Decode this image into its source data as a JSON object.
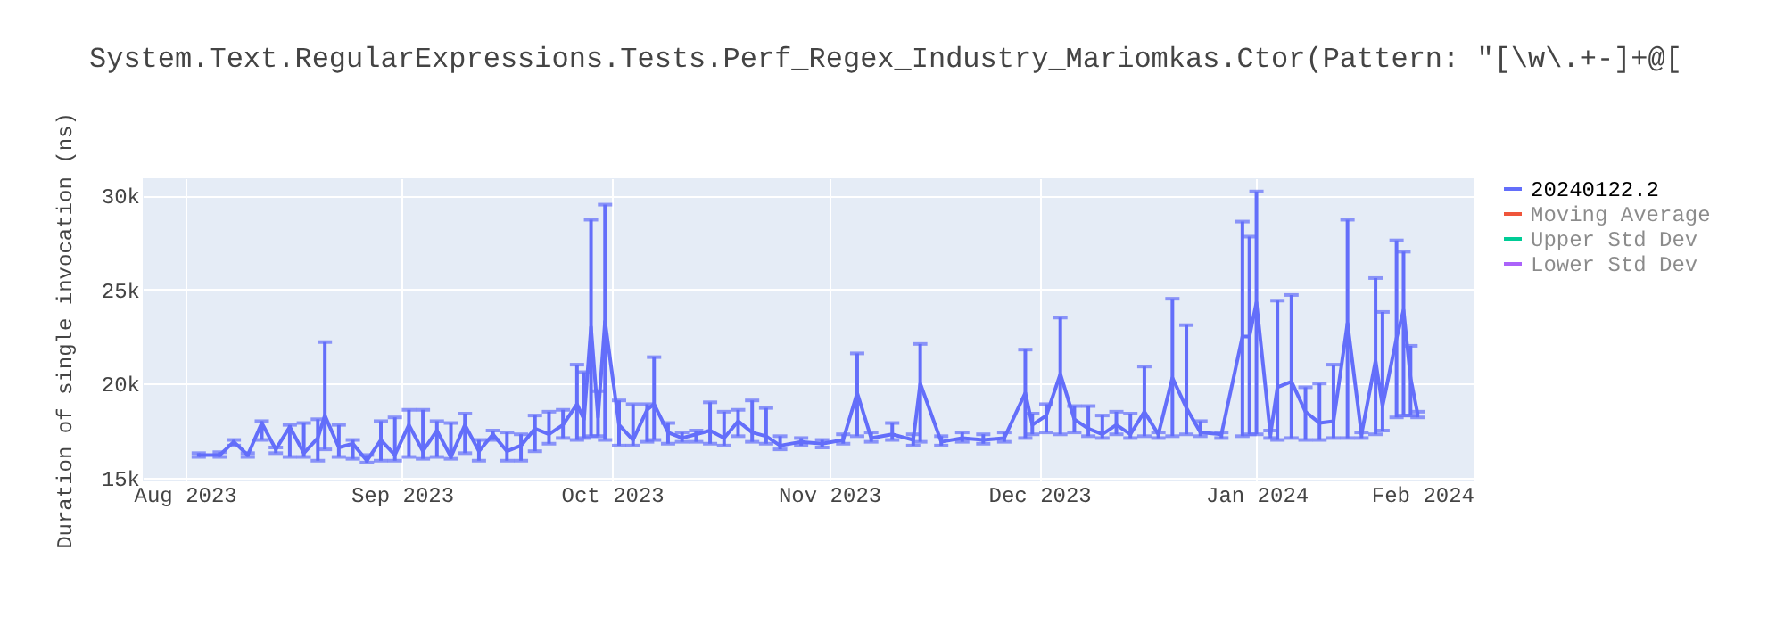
{
  "chart_data": {
    "type": "line",
    "title": "System.Text.RegularExpressions.Tests.Perf_Regex_Industry_Mariomkas.Ctor(Pattern: \"[\\w\\.+-]+@[",
    "ylabel": "Duration of single invocation (ns)",
    "xlim": [
      "2023-07-26",
      "2024-02-01"
    ],
    "xticks": [
      {
        "value": "2023-08-01",
        "label": "Aug 2023"
      },
      {
        "value": "2023-09-01",
        "label": "Sep 2023"
      },
      {
        "value": "2023-10-01",
        "label": "Oct 2023"
      },
      {
        "value": "2023-11-01",
        "label": "Nov 2023"
      },
      {
        "value": "2023-12-01",
        "label": "Dec 2023"
      },
      {
        "value": "2024-01-01",
        "label": "Jan 2024"
      },
      {
        "value": "2024-02-01",
        "label": "Feb 2024"
      }
    ],
    "ylim": [
      14800,
      30900
    ],
    "yticks": [
      {
        "value": 15000,
        "label": "15k"
      },
      {
        "value": 20000,
        "label": "20k"
      },
      {
        "value": 25000,
        "label": "25k"
      },
      {
        "value": 30000,
        "label": "30k"
      }
    ],
    "grid": true,
    "legend": "right",
    "line_style": "solid",
    "series": [
      {
        "name": "20240122.2",
        "color": "#636efa",
        "x": [
          "2023-08-03",
          "2023-08-06",
          "2023-08-08",
          "2023-08-10",
          "2023-08-12",
          "2023-08-14",
          "2023-08-16",
          "2023-08-18",
          "2023-08-20",
          "2023-08-21",
          "2023-08-23",
          "2023-08-25",
          "2023-08-27",
          "2023-08-29",
          "2023-08-31",
          "2023-09-02",
          "2023-09-04",
          "2023-09-06",
          "2023-09-08",
          "2023-09-10",
          "2023-09-12",
          "2023-09-14",
          "2023-09-16",
          "2023-09-18",
          "2023-09-20",
          "2023-09-22",
          "2023-09-24",
          "2023-09-26",
          "2023-09-27",
          "2023-09-28",
          "2023-09-29",
          "2023-09-30",
          "2023-10-02",
          "2023-10-04",
          "2023-10-06",
          "2023-10-07",
          "2023-10-09",
          "2023-10-11",
          "2023-10-13",
          "2023-10-15",
          "2023-10-17",
          "2023-10-19",
          "2023-10-21",
          "2023-10-23",
          "2023-10-25",
          "2023-10-28",
          "2023-10-31",
          "2023-11-03",
          "2023-11-05",
          "2023-11-07",
          "2023-11-10",
          "2023-11-13",
          "2023-11-14",
          "2023-11-17",
          "2023-11-20",
          "2023-11-23",
          "2023-11-26",
          "2023-11-29",
          "2023-11-30",
          "2023-12-02",
          "2023-12-04",
          "2023-12-06",
          "2023-12-08",
          "2023-12-10",
          "2023-12-12",
          "2023-12-14",
          "2023-12-16",
          "2023-12-18",
          "2023-12-20",
          "2023-12-22",
          "2023-12-24",
          "2023-12-27",
          "2023-12-30",
          "2023-12-31",
          "2024-01-01",
          "2024-01-03",
          "2024-01-04",
          "2024-01-06",
          "2024-01-08",
          "2024-01-10",
          "2024-01-12",
          "2024-01-14",
          "2024-01-16",
          "2024-01-18",
          "2024-01-19",
          "2024-01-21",
          "2024-01-22",
          "2024-01-23",
          "2024-01-24"
        ],
        "values": [
          16200,
          16200,
          16900,
          16200,
          17900,
          16500,
          17700,
          16300,
          17100,
          18300,
          16600,
          16800,
          15900,
          17000,
          16200,
          17800,
          16400,
          17500,
          16100,
          17800,
          16400,
          17300,
          16400,
          16700,
          17600,
          17300,
          17800,
          18900,
          18100,
          23000,
          18200,
          23300,
          17800,
          17000,
          18600,
          18900,
          17400,
          17100,
          17300,
          17500,
          17100,
          18000,
          17400,
          17200,
          16700,
          16900,
          16800,
          17000,
          19500,
          17100,
          17300,
          17000,
          20000,
          16900,
          17100,
          17000,
          17100,
          19500,
          17800,
          18300,
          20500,
          18100,
          17600,
          17300,
          17800,
          17300,
          18500,
          17300,
          20300,
          18700,
          17400,
          17300,
          22500,
          22500,
          24300,
          17300,
          19800,
          20100,
          18500,
          17900,
          18000,
          23200,
          17300,
          21200,
          18800,
          22400,
          23900,
          20300,
          18400
        ],
        "errors": [
          [
            16100,
            16300
          ],
          [
            16100,
            16350
          ],
          [
            16700,
            17000
          ],
          [
            16100,
            16300
          ],
          [
            17000,
            18000
          ],
          [
            16300,
            16600
          ],
          [
            16100,
            17800
          ],
          [
            16100,
            17900
          ],
          [
            15900,
            18100
          ],
          [
            16500,
            22200
          ],
          [
            16100,
            17800
          ],
          [
            16000,
            17000
          ],
          [
            15800,
            16200
          ],
          [
            15900,
            18000
          ],
          [
            15900,
            18200
          ],
          [
            16100,
            18600
          ],
          [
            16000,
            18600
          ],
          [
            16100,
            18000
          ],
          [
            16000,
            17900
          ],
          [
            16300,
            18400
          ],
          [
            15900,
            17000
          ],
          [
            17000,
            17500
          ],
          [
            15900,
            17400
          ],
          [
            15900,
            17300
          ],
          [
            16400,
            18300
          ],
          [
            16800,
            18500
          ],
          [
            17100,
            18600
          ],
          [
            17000,
            21000
          ],
          [
            17100,
            20600
          ],
          [
            17200,
            28700
          ],
          [
            17200,
            19600
          ],
          [
            17000,
            29500
          ],
          [
            16700,
            19100
          ],
          [
            16700,
            18900
          ],
          [
            16900,
            18900
          ],
          [
            17000,
            21400
          ],
          [
            16800,
            17900
          ],
          [
            16900,
            17400
          ],
          [
            16900,
            17500
          ],
          [
            16800,
            19000
          ],
          [
            16700,
            18500
          ],
          [
            17200,
            18600
          ],
          [
            16900,
            19100
          ],
          [
            16800,
            18700
          ],
          [
            16500,
            17200
          ],
          [
            16700,
            17100
          ],
          [
            16600,
            17000
          ],
          [
            16800,
            17300
          ],
          [
            17200,
            21600
          ],
          [
            16900,
            17400
          ],
          [
            17000,
            17900
          ],
          [
            16700,
            17300
          ],
          [
            16900,
            22100
          ],
          [
            16700,
            17200
          ],
          [
            16900,
            17400
          ],
          [
            16800,
            17300
          ],
          [
            16900,
            17400
          ],
          [
            17100,
            21800
          ],
          [
            17300,
            18400
          ],
          [
            17400,
            18900
          ],
          [
            17300,
            23500
          ],
          [
            17400,
            18800
          ],
          [
            17200,
            18800
          ],
          [
            17100,
            18300
          ],
          [
            17300,
            18500
          ],
          [
            17100,
            18400
          ],
          [
            17200,
            20900
          ],
          [
            17100,
            17400
          ],
          [
            17200,
            24500
          ],
          [
            17300,
            23100
          ],
          [
            17200,
            18000
          ],
          [
            17100,
            17400
          ],
          [
            17200,
            28600
          ],
          [
            17300,
            27800
          ],
          [
            17300,
            30200
          ],
          [
            17100,
            17500
          ],
          [
            17000,
            24400
          ],
          [
            17100,
            24700
          ],
          [
            17000,
            19800
          ],
          [
            17000,
            20000
          ],
          [
            17100,
            21000
          ],
          [
            17100,
            28700
          ],
          [
            17100,
            17400
          ],
          [
            17300,
            25600
          ],
          [
            17500,
            23800
          ],
          [
            18200,
            27600
          ],
          [
            18300,
            27000
          ],
          [
            18300,
            22000
          ],
          [
            18200,
            18500
          ]
        ]
      },
      {
        "name": "Moving Average",
        "color": "#ef553b"
      },
      {
        "name": "Upper Std Dev",
        "color": "#00cc96"
      },
      {
        "name": "Lower Std Dev",
        "color": "#ab63fa"
      }
    ]
  }
}
